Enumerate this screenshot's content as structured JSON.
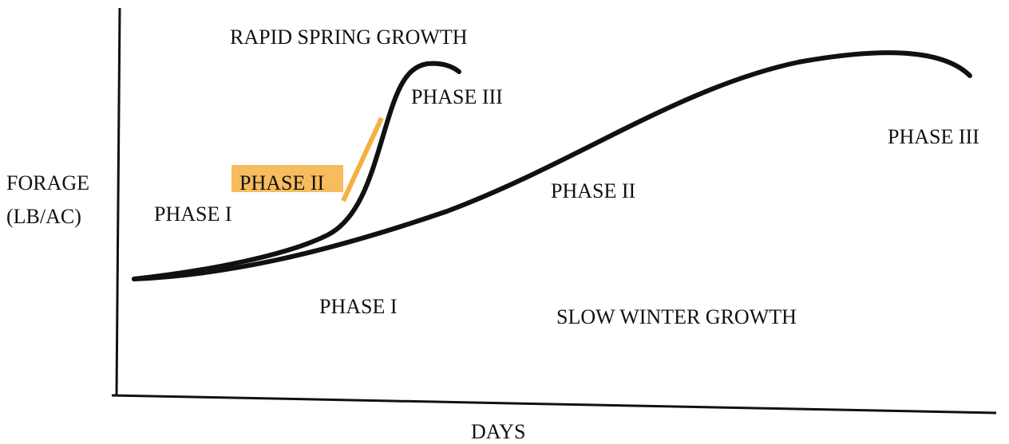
{
  "axes": {
    "y_label": [
      "FORAGE",
      "(LB/AC)"
    ],
    "x_label": "DAYS"
  },
  "curves": [
    {
      "name": "RAPID SPRING GROWTH",
      "phases": [
        "PHASE I",
        "PHASE II",
        "PHASE III"
      ]
    },
    {
      "name": "SLOW WINTER GROWTH",
      "phases": [
        "PHASE I",
        "PHASE II",
        "PHASE III"
      ]
    }
  ]
}
